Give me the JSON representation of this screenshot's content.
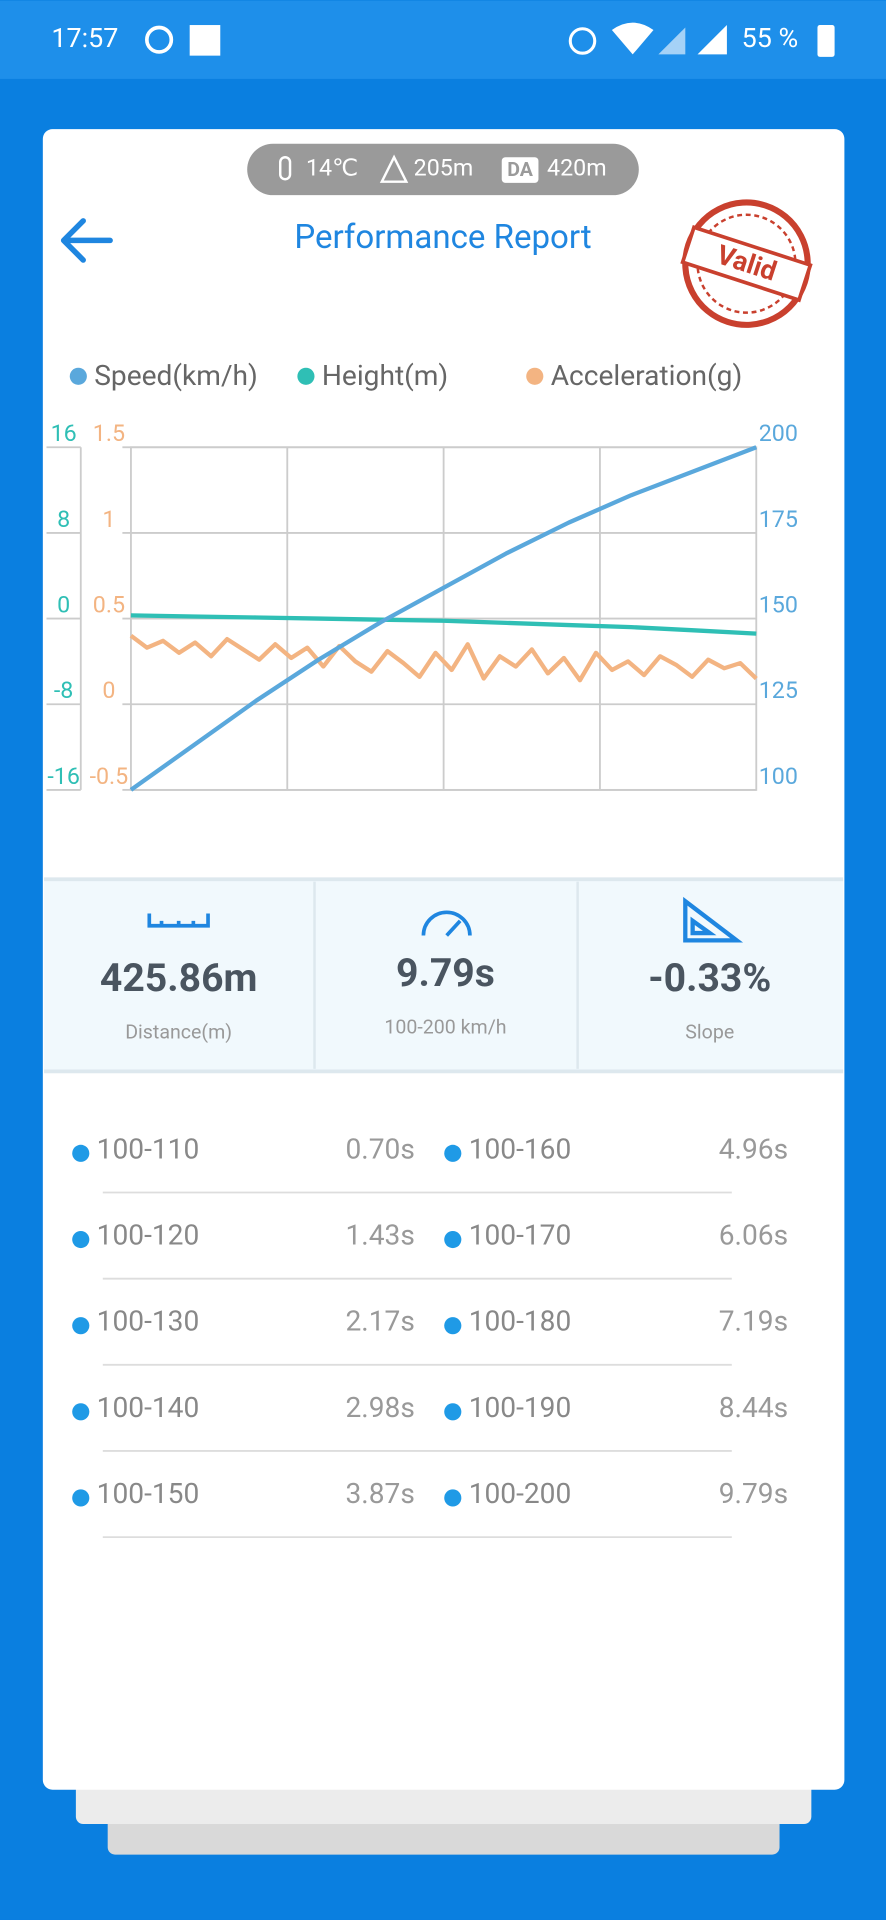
{
  "status_bar": {
    "time": "17:57",
    "battery": "55 %"
  },
  "conditions": {
    "temperature": "14℃",
    "altitude": "205m",
    "da_badge": "DA",
    "density_altitude": "420m"
  },
  "header": {
    "title": "Performance Report",
    "stamp": "Valid"
  },
  "chart_data": {
    "type": "line",
    "series": [
      {
        "name": "Speed(km/h)",
        "color": "#5aa8dc",
        "axis": "speed",
        "values": [
          100,
          113,
          126,
          138,
          149,
          159,
          169,
          178,
          186,
          193,
          200
        ]
      },
      {
        "name": "Height(m)",
        "color": "#2fbfb5",
        "axis": "height",
        "values": [
          0.3,
          0.2,
          0.1,
          0,
          -0.1,
          -0.2,
          -0.4,
          -0.6,
          -0.8,
          -1.1,
          -1.4
        ]
      },
      {
        "name": "Acceleration(g)",
        "color": "#f3b482",
        "axis": "acceleration",
        "values": [
          0.4,
          0.33,
          0.37,
          0.3,
          0.36,
          0.28,
          0.38,
          0.32,
          0.26,
          0.35,
          0.27,
          0.33,
          0.22,
          0.34,
          0.25,
          0.19,
          0.31,
          0.24,
          0.16,
          0.3,
          0.2,
          0.35,
          0.15,
          0.28,
          0.22,
          0.32,
          0.18,
          0.27,
          0.14,
          0.3,
          0.2,
          0.25,
          0.17,
          0.28,
          0.23,
          0.16,
          0.26,
          0.21,
          0.24,
          0.15
        ]
      }
    ],
    "height_lim": [
      -16,
      16
    ],
    "height_ticks": [
      -16,
      -8,
      0,
      8,
      16
    ],
    "acceleration_lim": [
      -0.5,
      1.5
    ],
    "acceleration_ticks": [
      -0.5,
      0,
      0.5,
      1,
      1.5
    ],
    "speed_lim": [
      100,
      200
    ],
    "speed_ticks": [
      100,
      125,
      150,
      175,
      200
    ],
    "grid": true
  },
  "stats": [
    {
      "value": "425.86m",
      "label": "Distance(m)"
    },
    {
      "value": "9.79s",
      "label": "100-200 km/h"
    },
    {
      "value": "-0.33%",
      "label": "Slope"
    }
  ],
  "splits": [
    {
      "range": "100-110",
      "time": "0.70s"
    },
    {
      "range": "100-160",
      "time": "4.96s"
    },
    {
      "range": "100-120",
      "time": "1.43s"
    },
    {
      "range": "100-170",
      "time": "6.06s"
    },
    {
      "range": "100-130",
      "time": "2.17s"
    },
    {
      "range": "100-180",
      "time": "7.19s"
    },
    {
      "range": "100-140",
      "time": "2.98s"
    },
    {
      "range": "100-190",
      "time": "8.44s"
    },
    {
      "range": "100-150",
      "time": "3.87s"
    },
    {
      "range": "100-200",
      "time": "9.79s"
    }
  ]
}
